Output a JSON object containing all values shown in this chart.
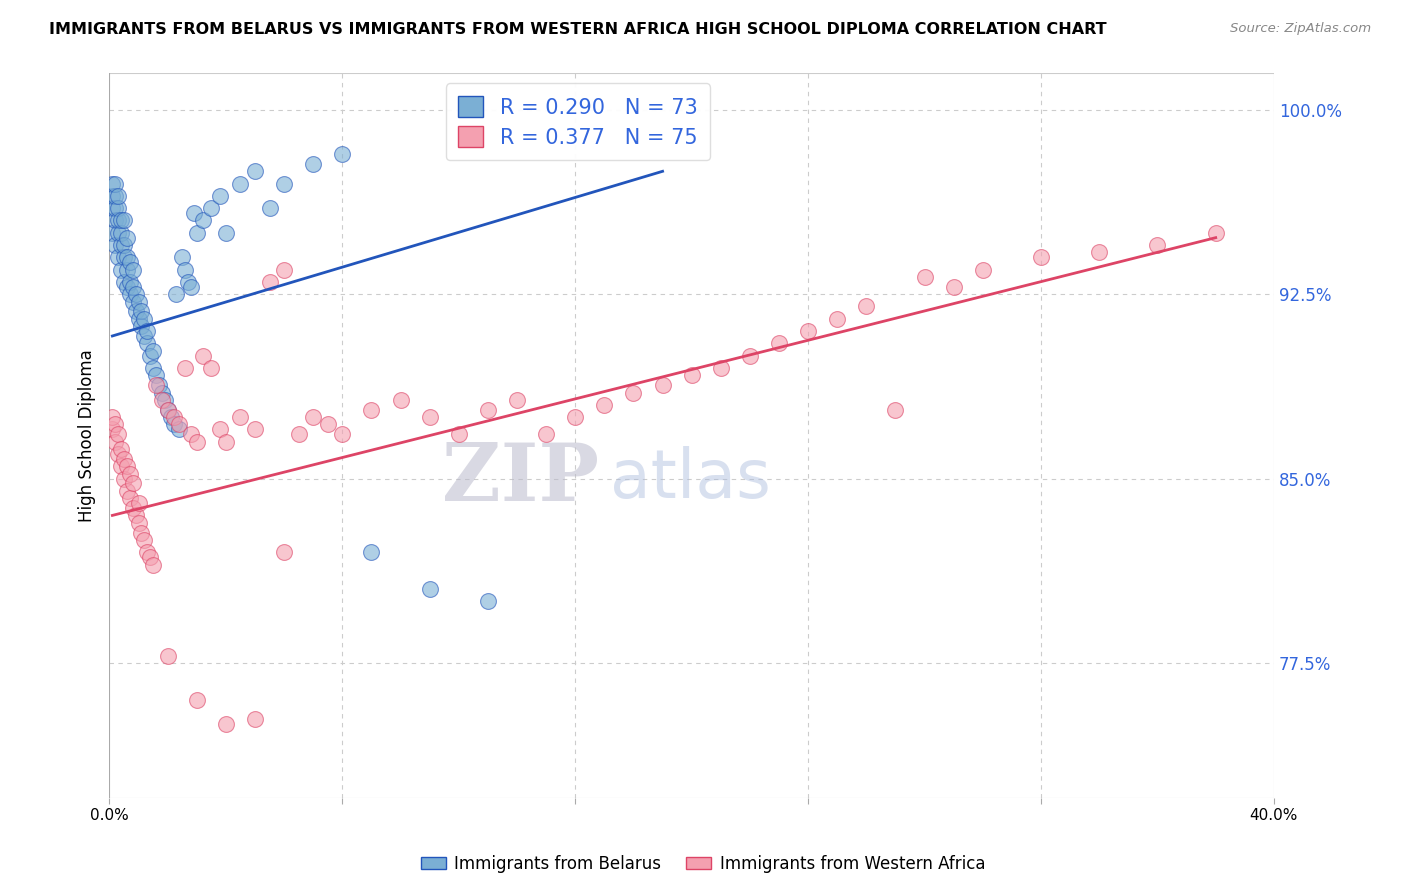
{
  "title": "IMMIGRANTS FROM BELARUS VS IMMIGRANTS FROM WESTERN AFRICA HIGH SCHOOL DIPLOMA CORRELATION CHART",
  "source": "Source: ZipAtlas.com",
  "ylabel": "High School Diploma",
  "ytick_labels": [
    "77.5%",
    "85.0%",
    "92.5%",
    "100.0%"
  ],
  "ytick_values": [
    0.775,
    0.85,
    0.925,
    1.0
  ],
  "xlim": [
    0.0,
    0.4
  ],
  "ylim": [
    0.72,
    1.015
  ],
  "R_belarus": 0.29,
  "N_belarus": 73,
  "R_western_africa": 0.377,
  "N_western_africa": 75,
  "color_belarus": "#7BAFD4",
  "color_western_africa": "#F4A0B0",
  "color_trendline_belarus": "#2255BB",
  "color_trendline_western_africa": "#DD4466",
  "color_rticks": "#3366DD",
  "watermark_zip": "#BBBBCC",
  "watermark_atlas": "#AABBDD",
  "belarus_x": [
    0.001,
    0.001,
    0.001,
    0.001,
    0.002,
    0.002,
    0.002,
    0.002,
    0.002,
    0.003,
    0.003,
    0.003,
    0.003,
    0.003,
    0.004,
    0.004,
    0.004,
    0.004,
    0.005,
    0.005,
    0.005,
    0.005,
    0.006,
    0.006,
    0.006,
    0.006,
    0.007,
    0.007,
    0.007,
    0.008,
    0.008,
    0.008,
    0.009,
    0.009,
    0.01,
    0.01,
    0.011,
    0.011,
    0.012,
    0.012,
    0.013,
    0.013,
    0.014,
    0.015,
    0.015,
    0.016,
    0.017,
    0.018,
    0.019,
    0.02,
    0.021,
    0.022,
    0.023,
    0.024,
    0.025,
    0.026,
    0.027,
    0.028,
    0.029,
    0.03,
    0.032,
    0.035,
    0.038,
    0.04,
    0.045,
    0.05,
    0.055,
    0.06,
    0.07,
    0.08,
    0.09,
    0.11,
    0.13
  ],
  "belarus_y": [
    0.95,
    0.96,
    0.965,
    0.97,
    0.945,
    0.955,
    0.96,
    0.965,
    0.97,
    0.94,
    0.95,
    0.955,
    0.96,
    0.965,
    0.935,
    0.945,
    0.95,
    0.955,
    0.93,
    0.94,
    0.945,
    0.955,
    0.928,
    0.935,
    0.94,
    0.948,
    0.925,
    0.93,
    0.938,
    0.922,
    0.928,
    0.935,
    0.918,
    0.925,
    0.915,
    0.922,
    0.912,
    0.918,
    0.908,
    0.915,
    0.905,
    0.91,
    0.9,
    0.895,
    0.902,
    0.892,
    0.888,
    0.885,
    0.882,
    0.878,
    0.875,
    0.872,
    0.925,
    0.87,
    0.94,
    0.935,
    0.93,
    0.928,
    0.958,
    0.95,
    0.955,
    0.96,
    0.965,
    0.95,
    0.97,
    0.975,
    0.96,
    0.97,
    0.978,
    0.982,
    0.82,
    0.805,
    0.8
  ],
  "wa_x": [
    0.001,
    0.001,
    0.002,
    0.002,
    0.003,
    0.003,
    0.004,
    0.004,
    0.005,
    0.005,
    0.006,
    0.006,
    0.007,
    0.007,
    0.008,
    0.008,
    0.009,
    0.01,
    0.01,
    0.011,
    0.012,
    0.013,
    0.014,
    0.015,
    0.016,
    0.018,
    0.02,
    0.022,
    0.024,
    0.026,
    0.028,
    0.03,
    0.032,
    0.035,
    0.038,
    0.04,
    0.045,
    0.05,
    0.055,
    0.06,
    0.065,
    0.07,
    0.075,
    0.08,
    0.09,
    0.1,
    0.11,
    0.12,
    0.13,
    0.14,
    0.15,
    0.16,
    0.17,
    0.18,
    0.19,
    0.2,
    0.21,
    0.22,
    0.23,
    0.24,
    0.25,
    0.26,
    0.27,
    0.28,
    0.29,
    0.3,
    0.32,
    0.34,
    0.36,
    0.38,
    0.02,
    0.03,
    0.04,
    0.05,
    0.06
  ],
  "wa_y": [
    0.87,
    0.875,
    0.865,
    0.872,
    0.86,
    0.868,
    0.855,
    0.862,
    0.85,
    0.858,
    0.845,
    0.855,
    0.842,
    0.852,
    0.838,
    0.848,
    0.835,
    0.832,
    0.84,
    0.828,
    0.825,
    0.82,
    0.818,
    0.815,
    0.888,
    0.882,
    0.878,
    0.875,
    0.872,
    0.895,
    0.868,
    0.865,
    0.9,
    0.895,
    0.87,
    0.865,
    0.875,
    0.87,
    0.93,
    0.935,
    0.868,
    0.875,
    0.872,
    0.868,
    0.878,
    0.882,
    0.875,
    0.868,
    0.878,
    0.882,
    0.868,
    0.875,
    0.88,
    0.885,
    0.888,
    0.892,
    0.895,
    0.9,
    0.905,
    0.91,
    0.915,
    0.92,
    0.878,
    0.932,
    0.928,
    0.935,
    0.94,
    0.942,
    0.945,
    0.95,
    0.778,
    0.76,
    0.75,
    0.752,
    0.82
  ],
  "trendline_bel_x0": 0.001,
  "trendline_bel_x1": 0.19,
  "trendline_bel_y0": 0.908,
  "trendline_bel_y1": 0.975,
  "trendline_wa_x0": 0.001,
  "trendline_wa_x1": 0.38,
  "trendline_wa_y0": 0.835,
  "trendline_wa_y1": 0.948
}
